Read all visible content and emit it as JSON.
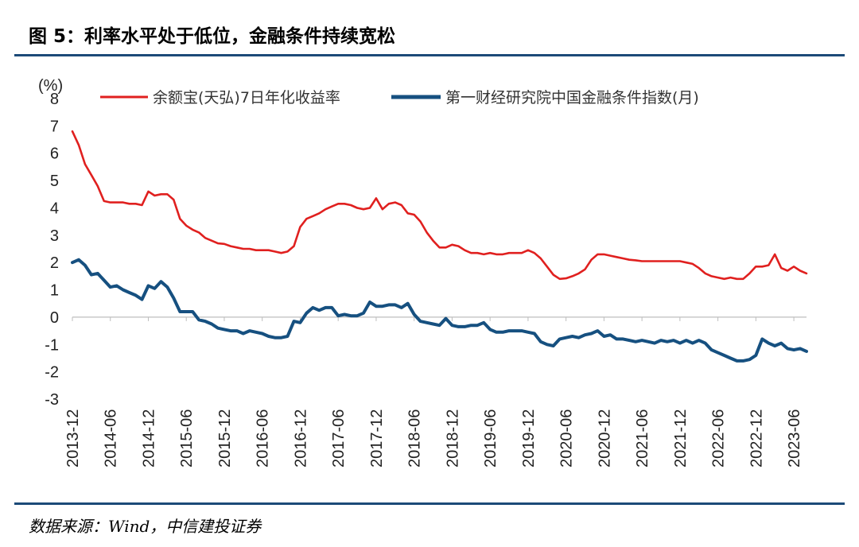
{
  "title": "图 5：利率水平处于低位，金融条件持续宽松",
  "source": "数据来源：Wind，中信建投证券",
  "colors": {
    "rule": "#1c4a78",
    "yuebao": "#e0201f",
    "fci": "#165080"
  },
  "chart_data": {
    "type": "line",
    "y_unit": "(%)",
    "ylim": [
      -3,
      8
    ],
    "yticks": [
      -3,
      -2,
      -1,
      0,
      1,
      2,
      3,
      4,
      5,
      6,
      7,
      8
    ],
    "xlim": [
      "2013-12",
      "2023-08"
    ],
    "xticks": [
      "2013-12",
      "2014-06",
      "2014-12",
      "2015-06",
      "2015-12",
      "2016-06",
      "2016-12",
      "2017-06",
      "2017-12",
      "2018-06",
      "2018-12",
      "2019-06",
      "2019-12",
      "2020-06",
      "2020-12",
      "2021-06",
      "2021-12",
      "2022-06",
      "2022-12",
      "2023-06"
    ],
    "legend": "top",
    "series": [
      {
        "name": "余额宝(天弘)7日年化收益率",
        "color": "#e0201f",
        "points": [
          [
            "2013-12",
            6.8
          ],
          [
            "2014-01",
            6.3
          ],
          [
            "2014-02",
            5.6
          ],
          [
            "2014-03",
            5.2
          ],
          [
            "2014-04",
            4.8
          ],
          [
            "2014-05",
            4.25
          ],
          [
            "2014-06",
            4.2
          ],
          [
            "2014-07",
            4.2
          ],
          [
            "2014-08",
            4.2
          ],
          [
            "2014-09",
            4.15
          ],
          [
            "2014-10",
            4.15
          ],
          [
            "2014-11",
            4.1
          ],
          [
            "2014-12",
            4.6
          ],
          [
            "2015-01",
            4.45
          ],
          [
            "2015-02",
            4.5
          ],
          [
            "2015-03",
            4.5
          ],
          [
            "2015-04",
            4.3
          ],
          [
            "2015-05",
            3.6
          ],
          [
            "2015-06",
            3.35
          ],
          [
            "2015-07",
            3.2
          ],
          [
            "2015-08",
            3.1
          ],
          [
            "2015-09",
            2.9
          ],
          [
            "2015-10",
            2.8
          ],
          [
            "2015-11",
            2.7
          ],
          [
            "2015-12",
            2.68
          ],
          [
            "2016-01",
            2.6
          ],
          [
            "2016-02",
            2.55
          ],
          [
            "2016-03",
            2.5
          ],
          [
            "2016-04",
            2.5
          ],
          [
            "2016-05",
            2.45
          ],
          [
            "2016-06",
            2.45
          ],
          [
            "2016-07",
            2.45
          ],
          [
            "2016-08",
            2.4
          ],
          [
            "2016-09",
            2.35
          ],
          [
            "2016-10",
            2.4
          ],
          [
            "2016-11",
            2.6
          ],
          [
            "2016-12",
            3.3
          ],
          [
            "2017-01",
            3.6
          ],
          [
            "2017-02",
            3.7
          ],
          [
            "2017-03",
            3.8
          ],
          [
            "2017-04",
            3.95
          ],
          [
            "2017-05",
            4.05
          ],
          [
            "2017-06",
            4.15
          ],
          [
            "2017-07",
            4.15
          ],
          [
            "2017-08",
            4.1
          ],
          [
            "2017-09",
            4.0
          ],
          [
            "2017-10",
            3.95
          ],
          [
            "2017-11",
            4.0
          ],
          [
            "2017-12",
            4.35
          ],
          [
            "2018-01",
            3.95
          ],
          [
            "2018-02",
            4.15
          ],
          [
            "2018-03",
            4.2
          ],
          [
            "2018-04",
            4.1
          ],
          [
            "2018-05",
            3.8
          ],
          [
            "2018-06",
            3.75
          ],
          [
            "2018-07",
            3.5
          ],
          [
            "2018-08",
            3.1
          ],
          [
            "2018-09",
            2.8
          ],
          [
            "2018-10",
            2.55
          ],
          [
            "2018-11",
            2.55
          ],
          [
            "2018-12",
            2.65
          ],
          [
            "2019-01",
            2.6
          ],
          [
            "2019-02",
            2.45
          ],
          [
            "2019-03",
            2.35
          ],
          [
            "2019-04",
            2.35
          ],
          [
            "2019-05",
            2.3
          ],
          [
            "2019-06",
            2.35
          ],
          [
            "2019-07",
            2.3
          ],
          [
            "2019-08",
            2.3
          ],
          [
            "2019-09",
            2.35
          ],
          [
            "2019-10",
            2.35
          ],
          [
            "2019-11",
            2.35
          ],
          [
            "2019-12",
            2.45
          ],
          [
            "2020-01",
            2.35
          ],
          [
            "2020-02",
            2.15
          ],
          [
            "2020-03",
            1.85
          ],
          [
            "2020-04",
            1.55
          ],
          [
            "2020-05",
            1.4
          ],
          [
            "2020-06",
            1.42
          ],
          [
            "2020-07",
            1.5
          ],
          [
            "2020-08",
            1.6
          ],
          [
            "2020-09",
            1.75
          ],
          [
            "2020-10",
            2.1
          ],
          [
            "2020-11",
            2.3
          ],
          [
            "2020-12",
            2.3
          ],
          [
            "2021-01",
            2.25
          ],
          [
            "2021-02",
            2.2
          ],
          [
            "2021-03",
            2.15
          ],
          [
            "2021-04",
            2.1
          ],
          [
            "2021-05",
            2.08
          ],
          [
            "2021-06",
            2.05
          ],
          [
            "2021-07",
            2.05
          ],
          [
            "2021-08",
            2.05
          ],
          [
            "2021-09",
            2.05
          ],
          [
            "2021-10",
            2.05
          ],
          [
            "2021-11",
            2.05
          ],
          [
            "2021-12",
            2.05
          ],
          [
            "2022-01",
            2.0
          ],
          [
            "2022-02",
            1.95
          ],
          [
            "2022-03",
            1.8
          ],
          [
            "2022-04",
            1.6
          ],
          [
            "2022-05",
            1.5
          ],
          [
            "2022-06",
            1.45
          ],
          [
            "2022-07",
            1.4
          ],
          [
            "2022-08",
            1.45
          ],
          [
            "2022-09",
            1.4
          ],
          [
            "2022-10",
            1.4
          ],
          [
            "2022-11",
            1.6
          ],
          [
            "2022-12",
            1.85
          ],
          [
            "2023-01",
            1.85
          ],
          [
            "2023-02",
            1.9
          ],
          [
            "2023-03",
            2.3
          ],
          [
            "2023-04",
            1.8
          ],
          [
            "2023-05",
            1.7
          ],
          [
            "2023-06",
            1.85
          ],
          [
            "2023-07",
            1.7
          ],
          [
            "2023-08",
            1.6
          ]
        ]
      },
      {
        "name": "第一财经研究院中国金融条件指数(月)",
        "color": "#165080",
        "points": [
          [
            "2013-12",
            2.0
          ],
          [
            "2014-01",
            2.1
          ],
          [
            "2014-02",
            1.9
          ],
          [
            "2014-03",
            1.55
          ],
          [
            "2014-04",
            1.6
          ],
          [
            "2014-05",
            1.35
          ],
          [
            "2014-06",
            1.1
          ],
          [
            "2014-07",
            1.15
          ],
          [
            "2014-08",
            1.0
          ],
          [
            "2014-09",
            0.9
          ],
          [
            "2014-10",
            0.8
          ],
          [
            "2014-11",
            0.65
          ],
          [
            "2014-12",
            1.15
          ],
          [
            "2015-01",
            1.05
          ],
          [
            "2015-02",
            1.3
          ],
          [
            "2015-03",
            1.1
          ],
          [
            "2015-04",
            0.7
          ],
          [
            "2015-05",
            0.2
          ],
          [
            "2015-06",
            0.2
          ],
          [
            "2015-07",
            0.2
          ],
          [
            "2015-08",
            -0.1
          ],
          [
            "2015-09",
            -0.15
          ],
          [
            "2015-10",
            -0.25
          ],
          [
            "2015-11",
            -0.4
          ],
          [
            "2015-12",
            -0.45
          ],
          [
            "2016-01",
            -0.5
          ],
          [
            "2016-02",
            -0.5
          ],
          [
            "2016-03",
            -0.6
          ],
          [
            "2016-04",
            -0.5
          ],
          [
            "2016-05",
            -0.55
          ],
          [
            "2016-06",
            -0.6
          ],
          [
            "2016-07",
            -0.7
          ],
          [
            "2016-08",
            -0.75
          ],
          [
            "2016-09",
            -0.75
          ],
          [
            "2016-10",
            -0.7
          ],
          [
            "2016-11",
            -0.15
          ],
          [
            "2016-12",
            -0.2
          ],
          [
            "2017-01",
            0.15
          ],
          [
            "2017-02",
            0.35
          ],
          [
            "2017-03",
            0.25
          ],
          [
            "2017-04",
            0.35
          ],
          [
            "2017-05",
            0.35
          ],
          [
            "2017-06",
            0.05
          ],
          [
            "2017-07",
            0.1
          ],
          [
            "2017-08",
            0.05
          ],
          [
            "2017-09",
            0.05
          ],
          [
            "2017-10",
            0.15
          ],
          [
            "2017-11",
            0.55
          ],
          [
            "2017-12",
            0.4
          ],
          [
            "2018-01",
            0.4
          ],
          [
            "2018-02",
            0.45
          ],
          [
            "2018-03",
            0.45
          ],
          [
            "2018-04",
            0.35
          ],
          [
            "2018-05",
            0.5
          ],
          [
            "2018-06",
            0.1
          ],
          [
            "2018-07",
            -0.15
          ],
          [
            "2018-08",
            -0.2
          ],
          [
            "2018-09",
            -0.25
          ],
          [
            "2018-10",
            -0.3
          ],
          [
            "2018-11",
            -0.05
          ],
          [
            "2018-12",
            -0.3
          ],
          [
            "2019-01",
            -0.35
          ],
          [
            "2019-02",
            -0.35
          ],
          [
            "2019-03",
            -0.3
          ],
          [
            "2019-04",
            -0.3
          ],
          [
            "2019-05",
            -0.2
          ],
          [
            "2019-06",
            -0.45
          ],
          [
            "2019-07",
            -0.55
          ],
          [
            "2019-08",
            -0.55
          ],
          [
            "2019-09",
            -0.5
          ],
          [
            "2019-10",
            -0.5
          ],
          [
            "2019-11",
            -0.5
          ],
          [
            "2019-12",
            -0.55
          ],
          [
            "2020-01",
            -0.6
          ],
          [
            "2020-02",
            -0.9
          ],
          [
            "2020-03",
            -1.0
          ],
          [
            "2020-04",
            -1.05
          ],
          [
            "2020-05",
            -0.8
          ],
          [
            "2020-06",
            -0.75
          ],
          [
            "2020-07",
            -0.7
          ],
          [
            "2020-08",
            -0.75
          ],
          [
            "2020-09",
            -0.65
          ],
          [
            "2020-10",
            -0.6
          ],
          [
            "2020-11",
            -0.5
          ],
          [
            "2020-12",
            -0.7
          ],
          [
            "2021-01",
            -0.65
          ],
          [
            "2021-02",
            -0.8
          ],
          [
            "2021-03",
            -0.8
          ],
          [
            "2021-04",
            -0.85
          ],
          [
            "2021-05",
            -0.9
          ],
          [
            "2021-06",
            -0.85
          ],
          [
            "2021-07",
            -0.9
          ],
          [
            "2021-08",
            -0.95
          ],
          [
            "2021-09",
            -0.85
          ],
          [
            "2021-10",
            -0.9
          ],
          [
            "2021-11",
            -0.85
          ],
          [
            "2021-12",
            -0.95
          ],
          [
            "2022-01",
            -0.85
          ],
          [
            "2022-02",
            -0.95
          ],
          [
            "2022-03",
            -0.85
          ],
          [
            "2022-04",
            -0.95
          ],
          [
            "2022-05",
            -1.2
          ],
          [
            "2022-06",
            -1.3
          ],
          [
            "2022-07",
            -1.4
          ],
          [
            "2022-08",
            -1.5
          ],
          [
            "2022-09",
            -1.6
          ],
          [
            "2022-10",
            -1.6
          ],
          [
            "2022-11",
            -1.55
          ],
          [
            "2022-12",
            -1.4
          ],
          [
            "2023-01",
            -0.8
          ],
          [
            "2023-02",
            -0.95
          ],
          [
            "2023-03",
            -1.05
          ],
          [
            "2023-04",
            -0.95
          ],
          [
            "2023-05",
            -1.15
          ],
          [
            "2023-06",
            -1.2
          ],
          [
            "2023-07",
            -1.15
          ],
          [
            "2023-08",
            -1.25
          ]
        ]
      }
    ]
  }
}
